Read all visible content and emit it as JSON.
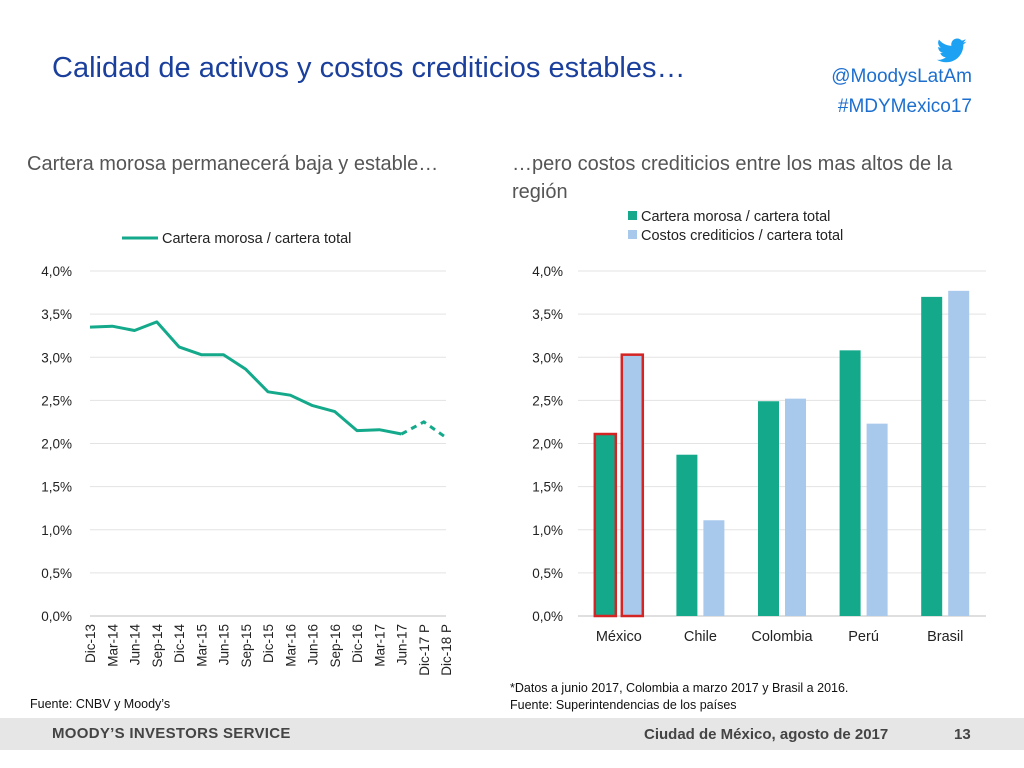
{
  "header": {
    "title": "Calidad de activos y costos crediticios estables…",
    "handle": "@MoodysLatAm",
    "hashtag": "#MDYMexico17",
    "twitter_icon": "twitter-bird-icon"
  },
  "left": {
    "subtitle": "Cartera morosa permanecerá baja y estable…",
    "source": "Fuente: CNBV y Moody’s"
  },
  "right": {
    "subtitle": "…pero costos crediticios entre los mas altos de la región",
    "note1": "*Datos a junio 2017, Colombia a marzo 2017 y Brasil a 2016.",
    "note2": "Fuente: Superintendencias de los países"
  },
  "footer": {
    "brand": "MOODY’S INVESTORS SERVICE",
    "place_date": "Ciudad de México, agosto de 2017",
    "page_number": "13"
  },
  "colors": {
    "title": "#1a3f9c",
    "accent_green": "#13a98a",
    "light_blue": "#a9c9ec",
    "highlight_red": "#d42424",
    "footer_bg": "#e6e6e6"
  },
  "chart_data": [
    {
      "type": "line",
      "x": [
        "Dic-13",
        "Mar-14",
        "Jun-14",
        "Sep-14",
        "Dic-14",
        "Mar-15",
        "Jun-15",
        "Sep-15",
        "Dic-15",
        "Mar-16",
        "Jun-16",
        "Sep-16",
        "Dic-16",
        "Mar-17",
        "Jun-17",
        "Dic-17 P",
        "Dic-18 P"
      ],
      "series": [
        {
          "name": "Cartera morosa / cartera total",
          "values": [
            3.35,
            3.36,
            3.31,
            3.41,
            3.12,
            3.03,
            3.03,
            2.86,
            2.6,
            2.56,
            2.44,
            2.37,
            2.15,
            2.16,
            2.11,
            2.25,
            2.07
          ],
          "projected_from_index": 14
        }
      ],
      "yticks": [
        "0,0%",
        "0,5%",
        "1,0%",
        "1,5%",
        "2,0%",
        "2,5%",
        "3,0%",
        "3,5%",
        "4,0%"
      ],
      "ylim": [
        0,
        4.0
      ],
      "legend": "top",
      "grid": true
    },
    {
      "type": "bar",
      "categories": [
        "México",
        "Chile",
        "Colombia",
        "Perú",
        "Brasil"
      ],
      "series": [
        {
          "name": "Cartera morosa / cartera total",
          "values": [
            2.11,
            1.87,
            2.49,
            3.08,
            3.7
          ]
        },
        {
          "name": "Costos crediticios / cartera total",
          "values": [
            3.03,
            1.11,
            2.52,
            2.23,
            3.77
          ]
        }
      ],
      "highlighted_category": "México",
      "yticks": [
        "0,0%",
        "0,5%",
        "1,0%",
        "1,5%",
        "2,0%",
        "2,5%",
        "3,0%",
        "3,5%",
        "4,0%"
      ],
      "ylim": [
        0,
        4.0
      ],
      "legend": "top",
      "grid": true
    }
  ]
}
